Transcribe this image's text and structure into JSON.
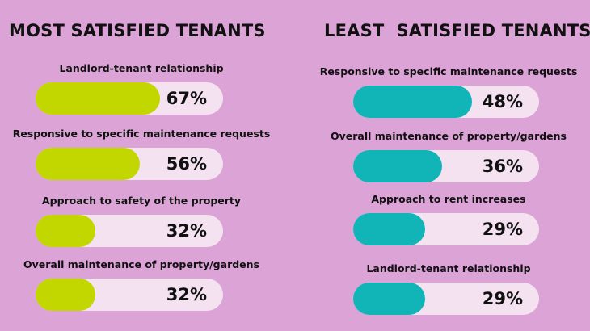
{
  "chart_data": [
    {
      "type": "bar",
      "title": "MOST SATISFIED TENANTS",
      "categories": [
        "Landlord-tenant relationship",
        "Responsive to specific maintenance requests",
        "Approach to safety of the  property",
        "Overall maintenance of property/gardens"
      ],
      "values": [
        67,
        56,
        32,
        32
      ],
      "value_labels": [
        "67%",
        "56%",
        "32%",
        "32%"
      ],
      "ylim": [
        0,
        100
      ],
      "bar_color": "#c2d600"
    },
    {
      "type": "bar",
      "title": "LEAST  SATISFIED TENANTS",
      "categories": [
        "Responsive to specific maintenance requests",
        "Overall maintenance of property/gardens",
        "Approach to rent increases",
        "Landlord-tenant relationship"
      ],
      "values": [
        48,
        36,
        29,
        29
      ],
      "value_labels": [
        "48%",
        "36%",
        "29%",
        "29%"
      ],
      "ylim": [
        0,
        100
      ],
      "bar_color": "#12b5b7"
    }
  ],
  "colors": {
    "background": "#dca3d7",
    "track": "#f4e2f1",
    "most_satisfied": "#c2d600",
    "least_satisfied": "#12b5b7"
  }
}
